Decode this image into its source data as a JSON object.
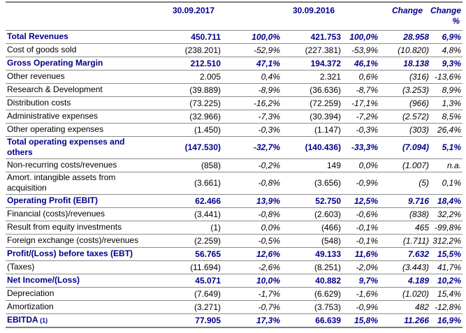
{
  "colors": {
    "emphasis_navy": "#00008B",
    "body_text": "#000000",
    "grid_line": "#8c8c8c",
    "outer_line": "#7e7e7e",
    "background": "#ffffff"
  },
  "table": {
    "header": {
      "col_label": "",
      "col_2017": "30.09.2017",
      "col_2017_pct": "",
      "col_2016": "30.09.2016",
      "col_2016_pct": "",
      "col_change": "Change",
      "col_change_pct_line1": "Change",
      "col_change_pct_line2": "%"
    },
    "rows": [
      {
        "label": "Total Revenues",
        "note": "",
        "cells": [
          "450.711",
          "100,0%",
          "421.753",
          "100,0%",
          "28.958",
          "6,9%"
        ],
        "emphasis": true
      },
      {
        "label": "Cost of goods sold",
        "note": "",
        "cells": [
          "(238.201)",
          "-52,9%",
          "(227.381)",
          "-53,9%",
          "(10.820)",
          "4,8%"
        ],
        "emphasis": false
      },
      {
        "label": "Gross Operating Margin",
        "note": "",
        "cells": [
          "212.510",
          "47,1%",
          "194.372",
          "46,1%",
          "18.138",
          "9,3%"
        ],
        "emphasis": true
      },
      {
        "label": "Other revenues",
        "note": "",
        "cells": [
          "2.005",
          "0,4%",
          "2.321",
          "0,6%",
          "(316)",
          "-13,6%"
        ],
        "emphasis": false
      },
      {
        "label": "Research & Development",
        "note": "",
        "cells": [
          "(39.889)",
          "-8,9%",
          "(36.636)",
          "-8,7%",
          "(3.253)",
          "8,9%"
        ],
        "emphasis": false
      },
      {
        "label": "Distribution costs",
        "note": "",
        "cells": [
          "(73.225)",
          "-16,2%",
          "(72.259)",
          "-17,1%",
          "(966)",
          "1,3%"
        ],
        "emphasis": false
      },
      {
        "label": "Administrative expenses",
        "note": "",
        "cells": [
          "(32.966)",
          "-7,3%",
          "(30.394)",
          "-7,2%",
          "(2.572)",
          "8,5%"
        ],
        "emphasis": false
      },
      {
        "label": "Other operating expenses",
        "note": "",
        "cells": [
          "(1.450)",
          "-0,3%",
          "(1.147)",
          "-0,3%",
          "(303)",
          "26,4%"
        ],
        "emphasis": false
      },
      {
        "label": "Total operating expenses and others",
        "note": "",
        "cells": [
          "(147.530)",
          "-32,7%",
          "(140.436)",
          "-33,3%",
          "(7.094)",
          "5,1%"
        ],
        "emphasis": true
      },
      {
        "label": "Non-recurring costs/revenues",
        "note": "",
        "cells": [
          "(858)",
          "-0,2%",
          "149",
          "0,0%",
          "(1.007)",
          "n.a."
        ],
        "emphasis": false
      },
      {
        "label": "Amort. intangible assets from acquisition",
        "note": "",
        "cells": [
          "(3.661)",
          "-0,8%",
          "(3.656)",
          "-0,9%",
          "(5)",
          "0,1%"
        ],
        "emphasis": false
      },
      {
        "label": "Operating Profit (EBIT)",
        "note": "",
        "cells": [
          "62.466",
          "13,9%",
          "52.750",
          "12,5%",
          "9.716",
          "18,4%"
        ],
        "emphasis": true
      },
      {
        "label": "Financial (costs)/revenues",
        "note": "",
        "cells": [
          "(3.441)",
          "-0,8%",
          "(2.603)",
          "-0,6%",
          "(838)",
          "32,2%"
        ],
        "emphasis": false
      },
      {
        "label": "Result from equity investments",
        "note": "",
        "cells": [
          "(1)",
          "0,0%",
          "(466)",
          "-0,1%",
          "465",
          "-99,8%"
        ],
        "emphasis": false
      },
      {
        "label": "Foreign exchange (costs)/revenues",
        "note": "",
        "cells": [
          "(2.259)",
          "-0,5%",
          "(548)",
          "-0,1%",
          "(1.711)",
          "312,2%"
        ],
        "emphasis": false
      },
      {
        "label": "Profit/(Loss) before taxes (EBT)",
        "note": "",
        "cells": [
          "56.765",
          "12,6%",
          "49.133",
          "11,6%",
          "7.632",
          "15,5%"
        ],
        "emphasis": true
      },
      {
        "label": "(Taxes)",
        "note": "",
        "cells": [
          "(11.694)",
          "-2,6%",
          "(8.251)",
          "-2,0%",
          "(3.443)",
          "41,7%"
        ],
        "emphasis": false
      },
      {
        "label": "Net Income/(Loss)",
        "note": "",
        "cells": [
          "45.071",
          "10,0%",
          "40.882",
          "9,7%",
          "4.189",
          "10,2%"
        ],
        "emphasis": true
      },
      {
        "label": "Depreciation",
        "note": "",
        "cells": [
          "(7.649)",
          "-1,7%",
          "(6.629)",
          "-1,6%",
          "(1.020)",
          "15,4%"
        ],
        "emphasis": false
      },
      {
        "label": "Amortization",
        "note": "",
        "cells": [
          "(3.271)",
          "-0,7%",
          "(3.753)",
          "-0,9%",
          "482",
          "-12,8%"
        ],
        "emphasis": false
      },
      {
        "label": "EBITDA",
        "note": "(1)",
        "cells": [
          "77.905",
          "17,3%",
          "66.639",
          "15,8%",
          "11.266",
          "16,9%"
        ],
        "emphasis": true
      }
    ]
  }
}
